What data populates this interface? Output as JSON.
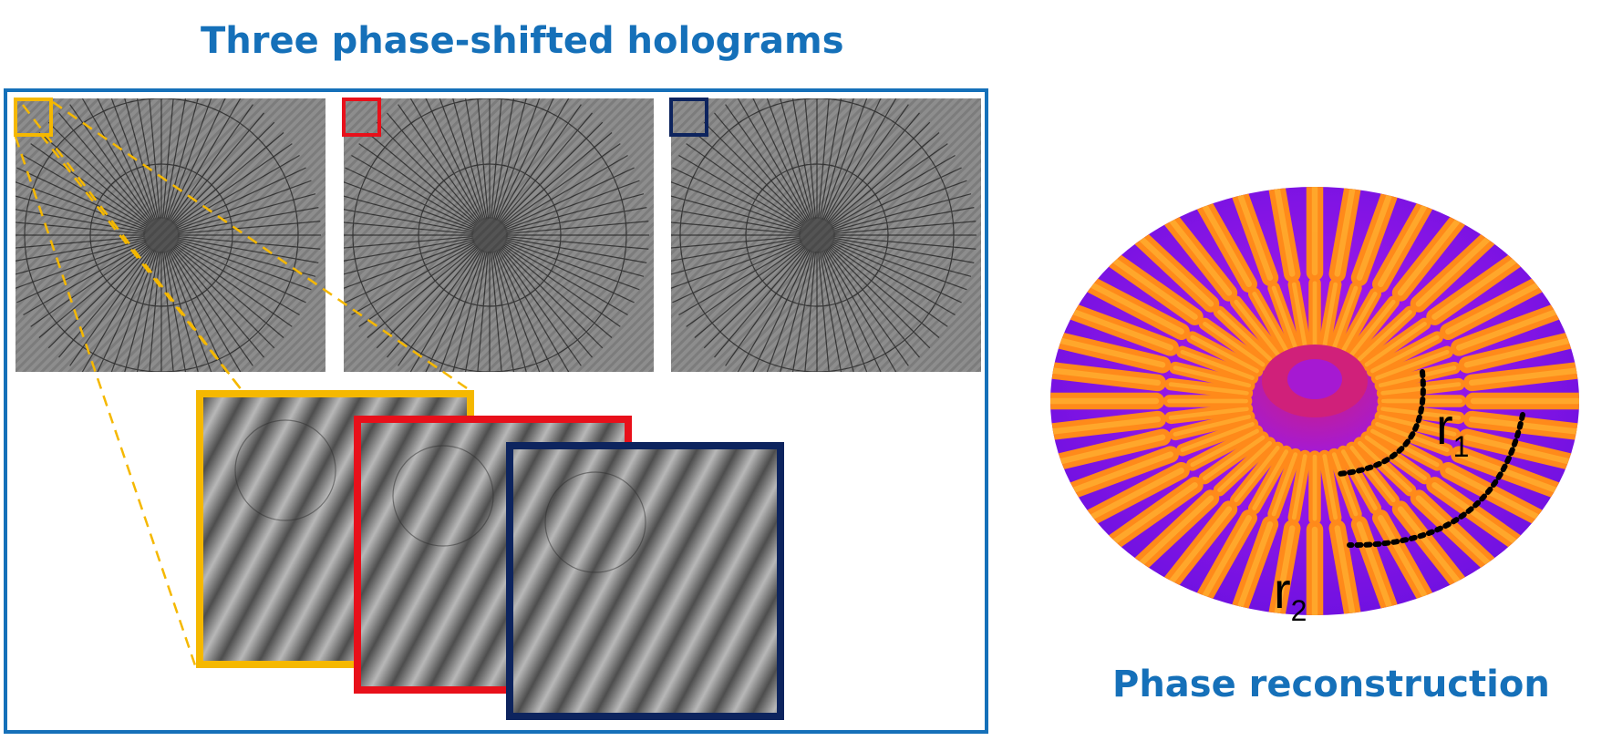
{
  "titles": {
    "holograms": "Three phase-shifted holograms",
    "reconstruction": "Phase reconstruction"
  },
  "holograms": {
    "count": 3,
    "roi_colors": [
      "#f5b800",
      "#e8101a",
      "#0d245e"
    ],
    "frame_color": "#1570b9"
  },
  "reconstruction": {
    "labels": {
      "r1": "r",
      "r1_sub": "1",
      "r2": "r",
      "r2_sub": "2"
    },
    "colormap": [
      "#6a10e0",
      "#9b18e8",
      "#d0207a",
      "#ff5a10",
      "#ff8a1a",
      "#ffae30"
    ]
  }
}
